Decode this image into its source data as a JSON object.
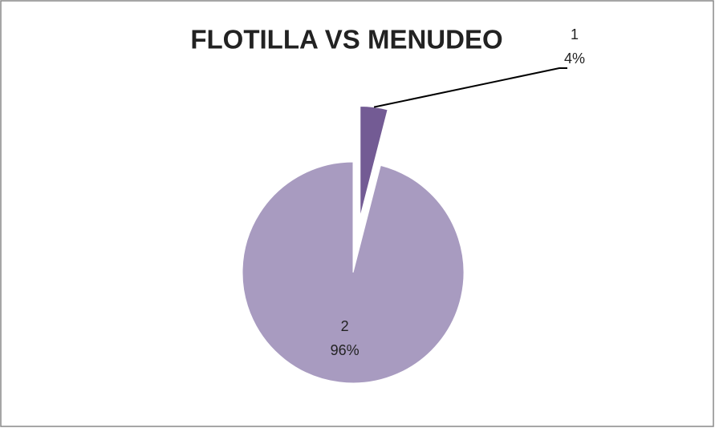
{
  "chart_data": {
    "type": "pie",
    "title": "FLOTILLA VS MENUDEO",
    "categories": [
      "1",
      "2"
    ],
    "values": [
      4,
      96
    ],
    "value_labels": [
      "4%",
      "96%"
    ],
    "colors": [
      "#735b94",
      "#a89bc0"
    ]
  }
}
